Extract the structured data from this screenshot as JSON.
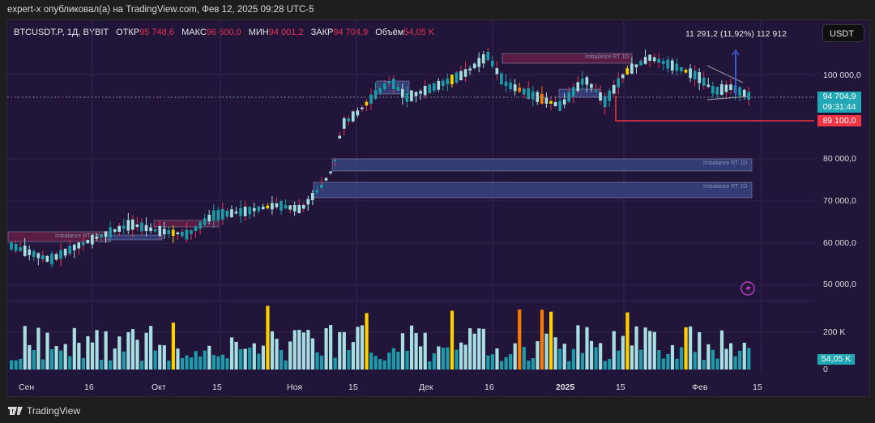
{
  "publication": "expert-x опубликовал(а) на TradingView.com, Фев 12, 2025 09:28 UTC-5",
  "legend": {
    "symbol": "BTCUSDT.P, 1Д, BYBIT",
    "open_label": "ОТКР",
    "open": "95 748,6",
    "high_label": "МАКС",
    "high": "96 600,0",
    "low_label": "МИН",
    "low": "94 001,2",
    "close_label": "ЗАКР",
    "close": "94 704,9",
    "vol_label": "Объём",
    "vol": "54,05 K"
  },
  "currency_button": "USDT",
  "measure_text": "11 291,2 (11,92%) 112 912",
  "price_axis": [
    "100 000,0",
    "80 000,0",
    "70 000,0",
    "60 000,0",
    "50 000,0"
  ],
  "volume_axis": [
    "200 K",
    "0"
  ],
  "current_price": "94 704,9",
  "countdown": "09:31:44",
  "level_price": "89 100,0",
  "current_volume": "54,05 K",
  "time_axis": [
    "Сен",
    "16",
    "Окт",
    "15",
    "Ноя",
    "15",
    "Дек",
    "16",
    "2025",
    "15",
    "Фев",
    "15"
  ],
  "imbalance_label": "Imbalance RT 1D",
  "brand": "TradingView",
  "colors": {
    "background": "#21163a",
    "bull": "#a8dde2",
    "bear": "#1e9aa8",
    "wick_down": "#e8334f",
    "highlight_yellow": "#ffd000",
    "highlight_orange": "#ff7a00",
    "imbalance_red": "#6b1f4a",
    "imbalance_blue": "#3b4a8a",
    "level_red": "#f23645",
    "price_tag": "#22a7b5"
  },
  "chart_data": {
    "type": "candlestick",
    "title": "BTCUSDT.P, 1Д, BYBIT",
    "x_ticks": [
      "Сен",
      "16",
      "Окт",
      "15",
      "Ноя",
      "15",
      "Дек",
      "16",
      "2025",
      "15",
      "Фев",
      "15"
    ],
    "y_ticks": [
      50000,
      60000,
      70000,
      80000,
      100000
    ],
    "ylim": [
      45000,
      112000
    ],
    "last": {
      "open": 95748.6,
      "high": 96600.0,
      "low": 94001.2,
      "close": 94704.9,
      "volume": "54.05K"
    },
    "horizontal_level": 89100.0,
    "measure": {
      "change": 11291.2,
      "percent": 11.92,
      "target": 112912
    },
    "imbalance_zones": [
      {
        "top": 79500,
        "bottom": 77000,
        "color": "blue"
      },
      {
        "top": 74500,
        "bottom": 71000,
        "color": "blue"
      },
      {
        "top": 104500,
        "bottom": 103000,
        "color": "red"
      },
      {
        "top": 62500,
        "bottom": 61000,
        "color": "red"
      }
    ],
    "volume_ylim": [
      0,
      300000
    ],
    "trend": "Sep ~58k → Nov breakout ~70k→99k → Dec peak ~108k → Feb ~94.7k"
  }
}
